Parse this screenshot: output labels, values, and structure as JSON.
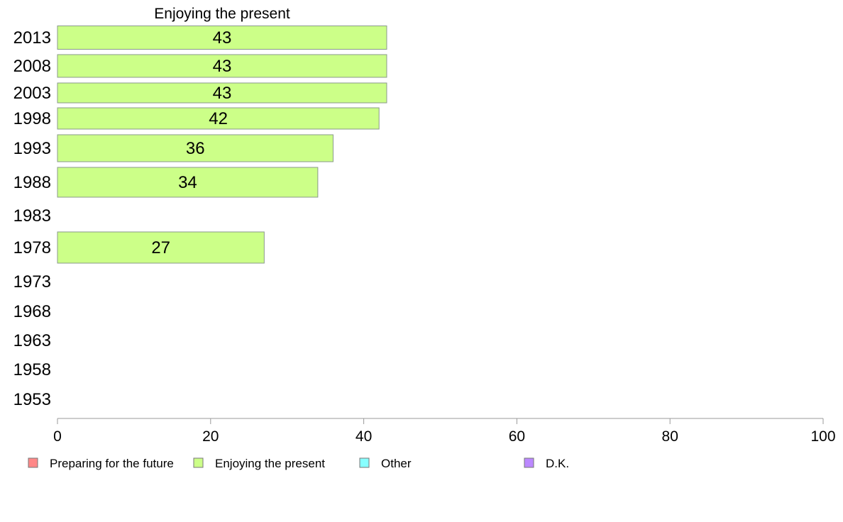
{
  "chart_data": {
    "type": "bar",
    "orientation": "horizontal",
    "title": "Enjoying the present",
    "categories": [
      "2013",
      "2008",
      "2003",
      "1998",
      "1993",
      "1988",
      "1983",
      "1978",
      "1973",
      "1968",
      "1963",
      "1958",
      "1953"
    ],
    "series": [
      {
        "name": "Enjoying the present",
        "color": "#ccff88",
        "values": [
          43,
          43,
          43,
          42,
          36,
          34,
          null,
          27,
          null,
          null,
          null,
          null,
          null
        ]
      }
    ],
    "xlim": [
      0,
      100
    ],
    "xticks": [
      0,
      20,
      40,
      60,
      80,
      100
    ],
    "legend": {
      "position": "bottom",
      "items": [
        {
          "label": "Preparing for the future",
          "color": "#ff8888"
        },
        {
          "label": "Enjoying the present",
          "color": "#ccff88"
        },
        {
          "label": "Other",
          "color": "#88ffff"
        },
        {
          "label": "D.K.",
          "color": "#bb88ff"
        }
      ]
    }
  }
}
